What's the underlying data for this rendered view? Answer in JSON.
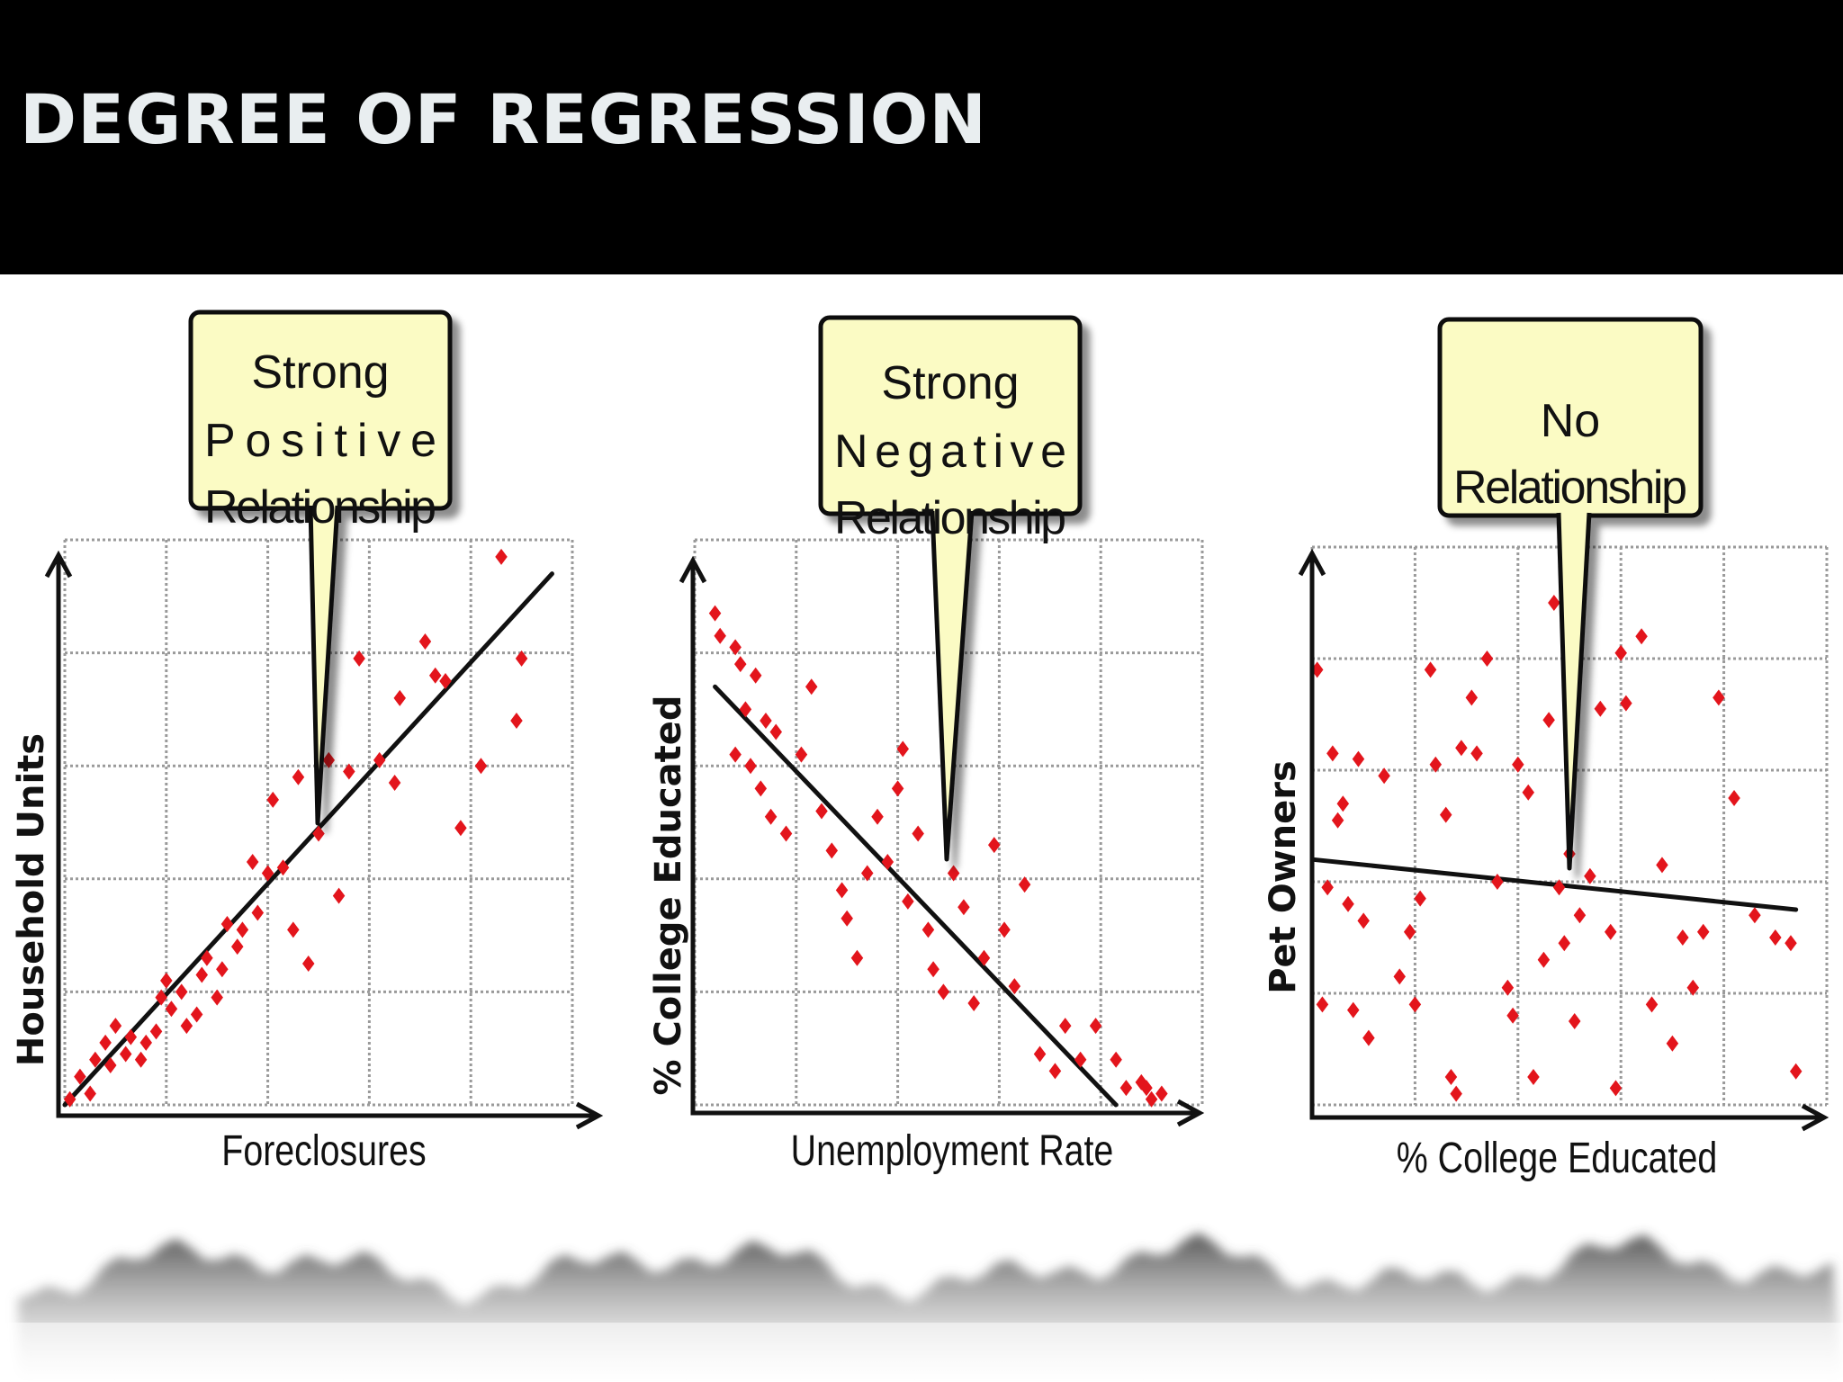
{
  "slide": {
    "title": "DEGREE OF REGRESSION"
  },
  "colors": {
    "point": "#e3151c",
    "callout_fill": "#fbfbc4",
    "grid": "#9a9a9a",
    "header_bg": "#000000",
    "title_text": "#e9eef0"
  },
  "chart_data": [
    {
      "type": "scatter",
      "title": "",
      "callout": [
        "Strong",
        "Positive",
        "Relationship"
      ],
      "xlabel": "Foreclosures",
      "ylabel": "Household Units",
      "xlim": [
        0,
        10
      ],
      "ylim": [
        0,
        10
      ],
      "grid": true,
      "trendline": [
        [
          0,
          0
        ],
        [
          9.6,
          9.4
        ]
      ],
      "points": [
        [
          0.1,
          0.1
        ],
        [
          0.3,
          0.5
        ],
        [
          0.5,
          0.2
        ],
        [
          0.6,
          0.8
        ],
        [
          0.8,
          1.1
        ],
        [
          0.9,
          0.7
        ],
        [
          1.0,
          1.4
        ],
        [
          1.2,
          0.9
        ],
        [
          1.3,
          1.2
        ],
        [
          1.5,
          0.8
        ],
        [
          1.6,
          1.1
        ],
        [
          1.8,
          1.3
        ],
        [
          1.9,
          1.9
        ],
        [
          2.0,
          2.2
        ],
        [
          2.1,
          1.7
        ],
        [
          2.3,
          2.0
        ],
        [
          2.4,
          1.4
        ],
        [
          2.6,
          1.6
        ],
        [
          2.7,
          2.3
        ],
        [
          2.8,
          2.6
        ],
        [
          3.0,
          1.9
        ],
        [
          3.1,
          2.4
        ],
        [
          3.2,
          3.2
        ],
        [
          3.4,
          2.8
        ],
        [
          3.5,
          3.1
        ],
        [
          3.7,
          4.3
        ],
        [
          3.8,
          3.4
        ],
        [
          4.0,
          4.1
        ],
        [
          4.1,
          5.4
        ],
        [
          4.3,
          4.2
        ],
        [
          4.5,
          3.1
        ],
        [
          4.6,
          5.8
        ],
        [
          4.8,
          2.5
        ],
        [
          5.0,
          4.8
        ],
        [
          5.2,
          6.1
        ],
        [
          5.4,
          3.7
        ],
        [
          5.6,
          5.9
        ],
        [
          5.8,
          7.9
        ],
        [
          6.2,
          6.1
        ],
        [
          6.5,
          5.7
        ],
        [
          6.6,
          7.2
        ],
        [
          7.1,
          8.2
        ],
        [
          7.3,
          7.6
        ],
        [
          7.5,
          7.5
        ],
        [
          7.8,
          4.9
        ],
        [
          8.2,
          6.0
        ],
        [
          8.6,
          9.7
        ],
        [
          9.0,
          7.9
        ],
        [
          8.9,
          6.8
        ]
      ]
    },
    {
      "type": "scatter",
      "title": "",
      "callout": [
        "Strong",
        "Negative",
        "Relationship"
      ],
      "xlabel": "Unemployment Rate",
      "ylabel": "% College Educated",
      "xlim": [
        0,
        10
      ],
      "ylim": [
        0,
        10
      ],
      "grid": true,
      "trendline": [
        [
          0.4,
          7.4
        ],
        [
          8.3,
          0.0
        ]
      ],
      "points": [
        [
          0.4,
          8.7
        ],
        [
          0.5,
          8.3
        ],
        [
          0.8,
          8.1
        ],
        [
          0.9,
          7.8
        ],
        [
          1.2,
          7.6
        ],
        [
          1.0,
          7.0
        ],
        [
          1.4,
          6.8
        ],
        [
          1.6,
          6.6
        ],
        [
          0.8,
          6.2
        ],
        [
          1.1,
          6.0
        ],
        [
          1.3,
          5.6
        ],
        [
          1.5,
          5.1
        ],
        [
          1.8,
          4.8
        ],
        [
          2.1,
          6.2
        ],
        [
          2.3,
          7.4
        ],
        [
          2.5,
          5.2
        ],
        [
          2.7,
          4.5
        ],
        [
          2.9,
          3.8
        ],
        [
          3.0,
          3.3
        ],
        [
          3.2,
          2.6
        ],
        [
          3.4,
          4.1
        ],
        [
          3.6,
          5.1
        ],
        [
          3.8,
          4.3
        ],
        [
          4.0,
          5.6
        ],
        [
          4.1,
          6.3
        ],
        [
          4.2,
          3.6
        ],
        [
          4.4,
          4.8
        ],
        [
          4.6,
          3.1
        ],
        [
          4.7,
          2.4
        ],
        [
          4.9,
          2.0
        ],
        [
          5.1,
          4.1
        ],
        [
          5.3,
          3.5
        ],
        [
          5.5,
          1.8
        ],
        [
          5.7,
          2.6
        ],
        [
          5.9,
          4.6
        ],
        [
          6.1,
          3.1
        ],
        [
          6.3,
          2.1
        ],
        [
          6.5,
          3.9
        ],
        [
          6.8,
          0.9
        ],
        [
          7.1,
          0.6
        ],
        [
          7.3,
          1.4
        ],
        [
          7.6,
          0.8
        ],
        [
          7.9,
          1.4
        ],
        [
          8.3,
          0.8
        ],
        [
          8.5,
          0.3
        ],
        [
          8.8,
          0.4
        ],
        [
          9.0,
          0.1
        ],
        [
          9.2,
          0.2
        ],
        [
          8.9,
          0.3
        ]
      ]
    },
    {
      "type": "scatter",
      "title": "",
      "callout": [
        "No",
        "Relationship"
      ],
      "xlabel": "% College Educated",
      "ylabel": "Pet Owners",
      "xlim": [
        0,
        10
      ],
      "ylim": [
        0,
        10
      ],
      "grid": true,
      "trendline": [
        [
          0.0,
          4.4
        ],
        [
          9.4,
          3.5
        ]
      ],
      "points": [
        [
          0.1,
          7.8
        ],
        [
          0.2,
          1.8
        ],
        [
          0.3,
          3.9
        ],
        [
          0.4,
          6.3
        ],
        [
          0.5,
          5.1
        ],
        [
          0.6,
          5.4
        ],
        [
          0.7,
          3.6
        ],
        [
          0.8,
          1.7
        ],
        [
          0.9,
          6.2
        ],
        [
          1.0,
          3.3
        ],
        [
          1.1,
          1.2
        ],
        [
          1.4,
          5.9
        ],
        [
          1.7,
          2.3
        ],
        [
          1.9,
          3.1
        ],
        [
          2.0,
          1.8
        ],
        [
          2.1,
          3.7
        ],
        [
          2.3,
          7.8
        ],
        [
          2.4,
          6.1
        ],
        [
          2.6,
          5.2
        ],
        [
          2.7,
          0.5
        ],
        [
          2.8,
          0.2
        ],
        [
          2.9,
          6.4
        ],
        [
          3.1,
          7.3
        ],
        [
          3.2,
          6.3
        ],
        [
          3.4,
          8.0
        ],
        [
          3.6,
          4.0
        ],
        [
          3.8,
          2.1
        ],
        [
          3.9,
          1.6
        ],
        [
          4.0,
          6.1
        ],
        [
          4.2,
          5.6
        ],
        [
          4.3,
          0.5
        ],
        [
          4.5,
          2.6
        ],
        [
          4.6,
          6.9
        ],
        [
          4.7,
          9.0
        ],
        [
          4.8,
          3.9
        ],
        [
          4.9,
          2.9
        ],
        [
          5.0,
          4.5
        ],
        [
          5.1,
          1.5
        ],
        [
          5.2,
          3.4
        ],
        [
          5.4,
          4.1
        ],
        [
          5.6,
          7.1
        ],
        [
          5.8,
          3.1
        ],
        [
          5.9,
          0.3
        ],
        [
          6.0,
          8.1
        ],
        [
          6.1,
          7.2
        ],
        [
          6.4,
          8.4
        ],
        [
          6.6,
          1.8
        ],
        [
          6.8,
          4.3
        ],
        [
          7.0,
          1.1
        ],
        [
          7.2,
          3.0
        ],
        [
          7.4,
          2.1
        ],
        [
          7.6,
          3.1
        ],
        [
          7.9,
          7.3
        ],
        [
          8.2,
          5.5
        ],
        [
          8.6,
          3.4
        ],
        [
          9.0,
          3.0
        ],
        [
          9.3,
          2.9
        ],
        [
          9.4,
          0.6
        ]
      ]
    }
  ]
}
